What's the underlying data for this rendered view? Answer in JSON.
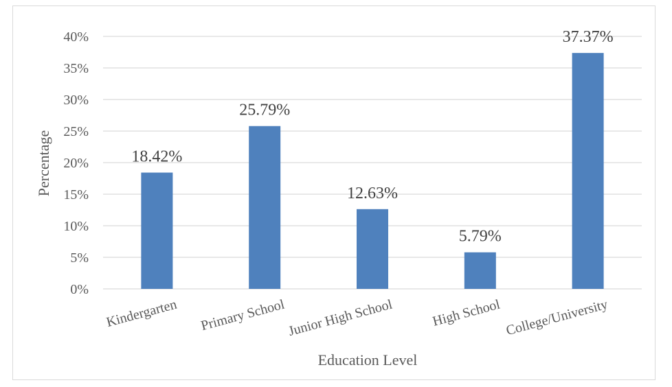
{
  "chart_data": {
    "type": "bar",
    "title": "",
    "xlabel": "Education Level",
    "ylabel": "Percentage",
    "categories": [
      "Kindergarten",
      "Primary School",
      "Junior High School",
      "High School",
      "College/University"
    ],
    "values": [
      18.42,
      25.79,
      12.63,
      5.79,
      37.37
    ],
    "data_labels": [
      "18.42%",
      "25.79%",
      "12.63%",
      "5.79%",
      "37.37%"
    ],
    "ylim": [
      0,
      40
    ],
    "y_ticks": [
      0,
      5,
      10,
      15,
      20,
      25,
      30,
      35,
      40
    ],
    "y_tick_labels": [
      "0%",
      "5%",
      "10%",
      "15%",
      "20%",
      "25%",
      "30%",
      "35%",
      "40%"
    ],
    "grid": true,
    "legend": "none",
    "colors": {
      "bar": "#4f81bd",
      "grid": "#d9d9d9",
      "axis": "#d9d9d9"
    }
  }
}
